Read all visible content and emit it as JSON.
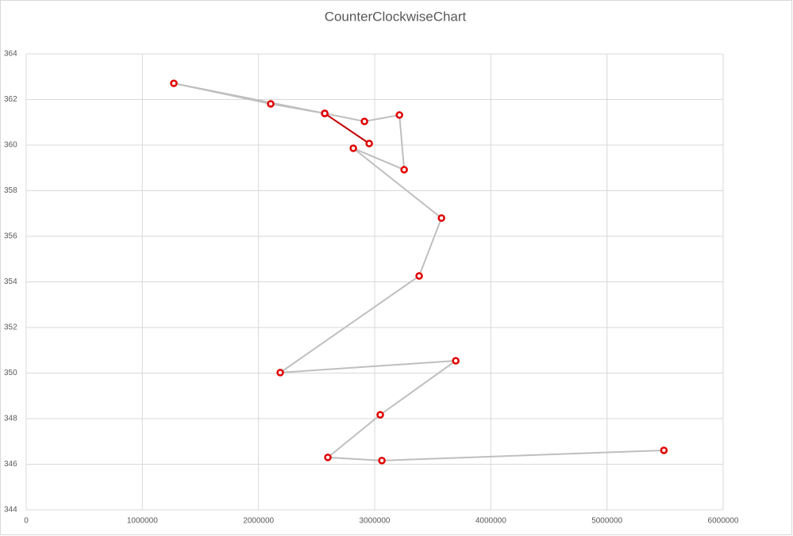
{
  "chart_data": {
    "type": "scatter-line",
    "title": "CounterClockwiseChart",
    "series": [
      {
        "color": "#bfbfbf",
        "marker_color": "#e00000",
        "x": [
          5490000,
          3062000,
          2597000,
          3048000,
          3698000,
          2187000,
          3383000,
          3575000,
          2816000,
          3254000,
          3213000,
          2912000,
          2570000,
          2105000,
          1271000,
          2570000
        ],
        "y": [
          346.61,
          346.16,
          346.3,
          348.17,
          350.54,
          350.02,
          354.26,
          356.8,
          359.86,
          358.92,
          361.32,
          361.04,
          361.39,
          361.81,
          362.71,
          361.39
        ]
      },
      {
        "color": "#c00000",
        "marker_color": "#e00000",
        "x": [
          2570000,
          2953000
        ],
        "y": [
          361.39,
          360.07
        ]
      }
    ],
    "xlim": [
      0,
      6000000
    ],
    "xticks": [
      0,
      1000000,
      2000000,
      3000000,
      4000000,
      5000000,
      6000000
    ],
    "ylim": [
      344,
      364
    ],
    "yticks": [
      344,
      346,
      348,
      350,
      352,
      354,
      356,
      358,
      360,
      362,
      364
    ],
    "grid": true
  }
}
